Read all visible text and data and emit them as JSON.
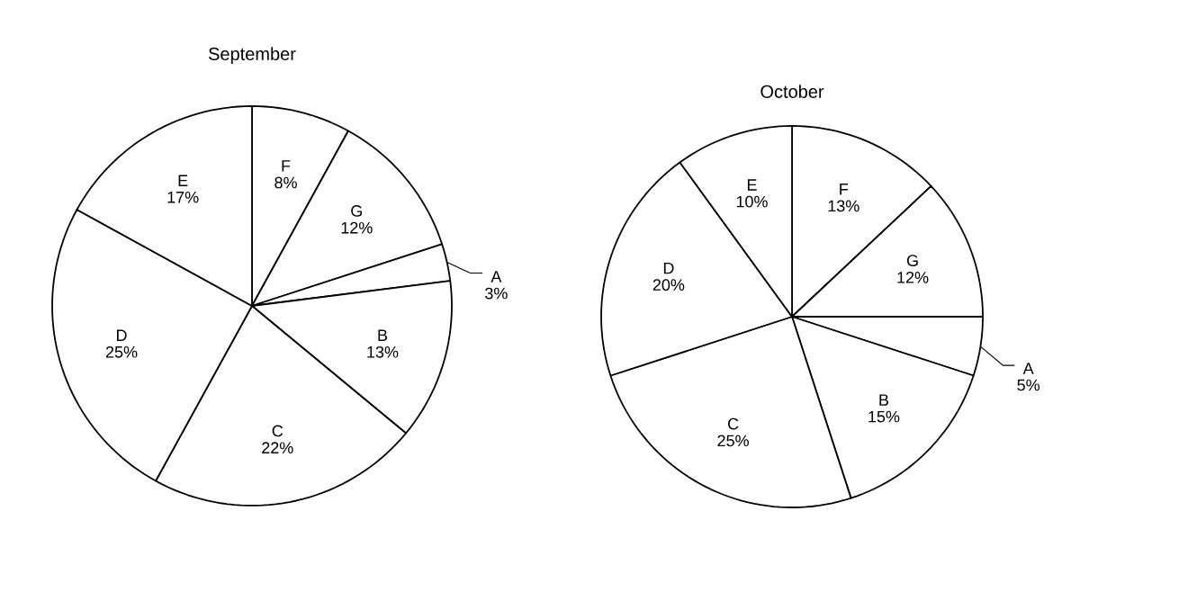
{
  "chart_data": [
    {
      "type": "pie",
      "title": "September",
      "categories": [
        "F",
        "G",
        "A",
        "B",
        "C",
        "D",
        "E"
      ],
      "values": [
        8,
        12,
        3,
        13,
        22,
        25,
        17
      ],
      "value_labels": [
        "8%",
        "12%",
        "3%",
        "13%",
        "22%",
        "25%",
        "17%"
      ],
      "colors": [
        "#ffffff",
        "#ffffff",
        "#ffffff",
        "#ffffff",
        "#ffffff",
        "#ffffff",
        "#ffffff"
      ]
    },
    {
      "type": "pie",
      "title": "October",
      "categories": [
        "F",
        "G",
        "A",
        "B",
        "C",
        "D",
        "E"
      ],
      "values": [
        13,
        12,
        5,
        15,
        25,
        20,
        10
      ],
      "value_labels": [
        "13%",
        "12%",
        "5%",
        "15%",
        "25%",
        "20%",
        "10%"
      ],
      "colors": [
        "#ffffff",
        "#ffffff",
        "#ffffff",
        "#ffffff",
        "#ffffff",
        "#ffffff",
        "#ffffff"
      ]
    }
  ]
}
